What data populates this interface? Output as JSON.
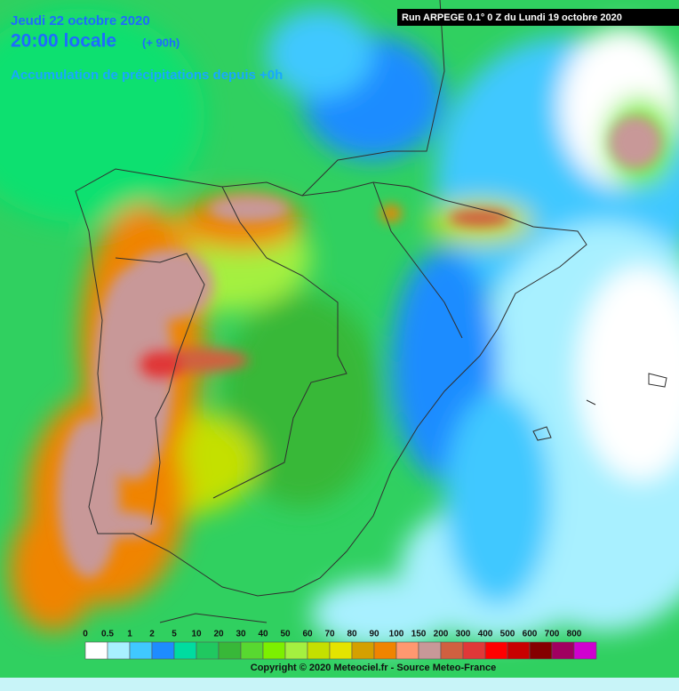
{
  "header": {
    "date": "Jeudi 22 octobre 2020",
    "time": "20:00 locale",
    "offset": "(+ 90h)",
    "product": "Accumulation de précipitations depuis +0h",
    "run": "Run ARPEGE 0.1° 0 Z du Lundi 19 octobre 2020"
  },
  "legend": {
    "labels": [
      "0",
      "0.5",
      "1",
      "2",
      "5",
      "10",
      "20",
      "30",
      "40",
      "50",
      "60",
      "70",
      "80",
      "90",
      "100",
      "150",
      "200",
      "300",
      "400",
      "500",
      "600",
      "700",
      "800"
    ],
    "colors": [
      "#ffffff",
      "#a8f0ff",
      "#40c8ff",
      "#1e8cff",
      "#00dca0",
      "#20c860",
      "#38b838",
      "#58d830",
      "#7cf000",
      "#a4f040",
      "#c4e000",
      "#e4e400",
      "#d4a000",
      "#f08400",
      "#ff9870",
      "#c89898",
      "#d06040",
      "#e03838",
      "#ff0000",
      "#c80000",
      "#840000",
      "#a00060",
      "#d000d0"
    ]
  },
  "footer": {
    "copyright": "Copyright © 2020 Meteociel.fr - Source Meteo-France"
  }
}
